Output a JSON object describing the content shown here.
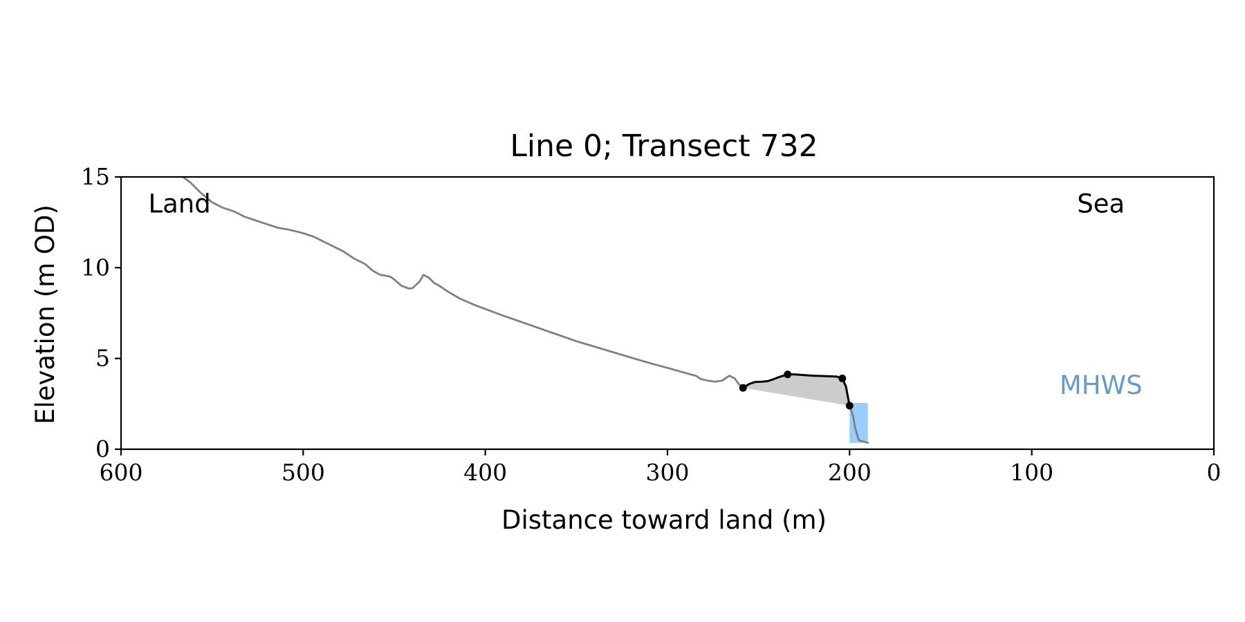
{
  "chart_data": {
    "type": "line",
    "title": "Line 0; Transect 732",
    "xlabel": "Distance toward land (m)",
    "ylabel": "Elevation (m OD)",
    "xlim": [
      600,
      0
    ],
    "ylim": [
      0,
      15
    ],
    "xticks": [
      600,
      500,
      400,
      300,
      200,
      100,
      0
    ],
    "yticks": [
      0,
      5,
      10,
      15
    ],
    "grid": false,
    "annotations": [
      {
        "text": "Land",
        "x": 585,
        "y": 13.5,
        "anchor": "start",
        "color": "#000000"
      },
      {
        "text": "Sea",
        "x": 62,
        "y": 13.5,
        "anchor": "middle",
        "color": "#000000"
      },
      {
        "text": "MHWS",
        "x": 62,
        "y": 3.5,
        "anchor": "middle",
        "color": "#6a9bc6"
      }
    ],
    "series": [
      {
        "role": "profile",
        "color": "#808080",
        "x": [
          566,
          562,
          556,
          550,
          544,
          538,
          532,
          526,
          520,
          514,
          508,
          500,
          494,
          488,
          484,
          478,
          472,
          466,
          462,
          458,
          455,
          452,
          450,
          446,
          442,
          440,
          436,
          434,
          431,
          428,
          426,
          420,
          414,
          406,
          398,
          390,
          380,
          370,
          360,
          350,
          340,
          330,
          320,
          310,
          300,
          290,
          284,
          282,
          278,
          274,
          270,
          266,
          263,
          261,
          258.5
        ],
        "y": [
          15.0,
          14.7,
          14.1,
          13.6,
          13.3,
          13.1,
          12.8,
          12.6,
          12.4,
          12.2,
          12.1,
          11.9,
          11.7,
          11.4,
          11.2,
          10.9,
          10.5,
          10.2,
          9.85,
          9.62,
          9.56,
          9.5,
          9.35,
          9.0,
          8.85,
          8.87,
          9.25,
          9.6,
          9.45,
          9.15,
          9.05,
          8.65,
          8.3,
          7.95,
          7.65,
          7.35,
          7.0,
          6.65,
          6.3,
          5.95,
          5.65,
          5.35,
          5.05,
          4.75,
          4.48,
          4.2,
          4.03,
          3.88,
          3.78,
          3.72,
          3.78,
          4.05,
          3.9,
          3.6,
          3.38
        ]
      },
      {
        "role": "profile",
        "color": "#808080",
        "x": [
          200,
          198,
          197,
          195,
          190
        ],
        "y": [
          2.4,
          1.8,
          1.2,
          0.5,
          0.35
        ]
      },
      {
        "role": "feature",
        "color": "#000000",
        "x": [
          258.5,
          255,
          252,
          248,
          245,
          242,
          238,
          234,
          230,
          225,
          220,
          212,
          207,
          204,
          202,
          200
        ],
        "y": [
          3.38,
          3.6,
          3.7,
          3.72,
          3.75,
          3.85,
          4.0,
          4.12,
          4.12,
          4.08,
          4.05,
          4.02,
          4.0,
          3.9,
          3.45,
          2.4
        ]
      }
    ],
    "markers": [
      {
        "x": 258.5,
        "y": 3.38
      },
      {
        "x": 234,
        "y": 4.12
      },
      {
        "x": 204,
        "y": 3.9
      },
      {
        "x": 200,
        "y": 2.4
      }
    ],
    "shaded_region": {
      "color": "#cccccc",
      "x": [
        258.5,
        255,
        252,
        248,
        245,
        242,
        238,
        234,
        230,
        225,
        220,
        212,
        207,
        204,
        202,
        200
      ],
      "y_top": [
        3.38,
        3.6,
        3.7,
        3.72,
        3.75,
        3.85,
        4.0,
        4.12,
        4.12,
        4.08,
        4.05,
        4.02,
        4.0,
        3.9,
        3.45,
        2.4
      ],
      "baseline": [
        [
          258.5,
          3.38
        ],
        [
          200,
          2.4
        ]
      ]
    },
    "water_region": {
      "color": "#99ccff",
      "x_range": [
        200,
        190
      ],
      "y_range": [
        0.35,
        2.55
      ]
    }
  }
}
